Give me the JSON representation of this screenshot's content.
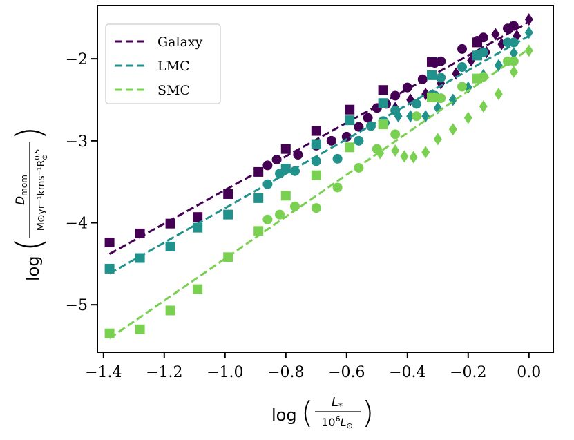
{
  "chart_data": {
    "type": "scatter",
    "xlim": [
      -1.42,
      0.08
    ],
    "ylim": [
      -5.58,
      -1.35
    ],
    "xticks": [
      -1.4,
      -1.2,
      -1.0,
      -0.8,
      -0.6,
      -0.4,
      -0.2,
      0.0
    ],
    "xtick_labels": [
      "−1.4",
      "−1.2",
      "−1.0",
      "−0.8",
      "−0.6",
      "−0.4",
      "−0.2",
      "0.0"
    ],
    "yticks": [
      -5,
      -4,
      -3,
      -2
    ],
    "ytick_labels": [
      "−5",
      "−4",
      "−3",
      "−2"
    ],
    "xlabel": {
      "prefix": "log",
      "num": "L",
      "num_sub": "*",
      "den": "10",
      "den_sup": "6",
      "den_var": "L",
      "den_sub": "⊙"
    },
    "ylabel": {
      "prefix": "log",
      "num": "D",
      "num_sub": "mom",
      "den": "M⊙yr⁻¹kms⁻¹R",
      "den_sup": "0.5",
      "den_sub": "⊙"
    },
    "legend": {
      "position": "upper-left",
      "entries": [
        "Galaxy",
        "LMC",
        "SMC"
      ]
    },
    "grid": false,
    "series": [
      {
        "name": "Galaxy",
        "color": "#440154",
        "fit": [
          [
            -1.38,
            -4.38
          ],
          [
            0.0,
            -1.55
          ]
        ],
        "squares": [
          [
            -1.38,
            -4.24
          ],
          [
            -1.28,
            -4.13
          ],
          [
            -1.18,
            -4.01
          ],
          [
            -1.09,
            -3.93
          ],
          [
            -0.99,
            -3.65
          ],
          [
            -0.89,
            -3.38
          ],
          [
            -0.8,
            -3.1
          ],
          [
            -0.7,
            -2.88
          ],
          [
            -0.59,
            -2.62
          ],
          [
            -0.48,
            -2.38
          ],
          [
            -0.32,
            -2.04
          ],
          [
            -0.17,
            -1.8
          ]
        ],
        "circles": [
          [
            -0.86,
            -3.3
          ],
          [
            -0.83,
            -3.23
          ],
          [
            -0.76,
            -3.17
          ],
          [
            -0.7,
            -3.06
          ],
          [
            -0.65,
            -3.0
          ],
          [
            -0.6,
            -2.95
          ],
          [
            -0.56,
            -2.83
          ],
          [
            -0.53,
            -2.72
          ],
          [
            -0.5,
            -2.6
          ],
          [
            -0.47,
            -2.55
          ],
          [
            -0.44,
            -2.45
          ],
          [
            -0.4,
            -2.35
          ],
          [
            -0.35,
            -2.25
          ],
          [
            -0.31,
            -2.05
          ],
          [
            -0.29,
            -2.03
          ],
          [
            -0.22,
            -1.88
          ],
          [
            -0.17,
            -1.78
          ],
          [
            -0.15,
            -1.74
          ],
          [
            -0.07,
            -1.63
          ],
          [
            -0.05,
            -1.6
          ]
        ],
        "diamonds": [
          [
            -0.44,
            -2.6
          ],
          [
            -0.39,
            -2.5
          ],
          [
            -0.34,
            -2.43
          ],
          [
            -0.29,
            -2.3
          ],
          [
            -0.24,
            -2.18
          ],
          [
            -0.19,
            -2.02
          ],
          [
            -0.14,
            -1.92
          ],
          [
            -0.09,
            -1.82
          ],
          [
            -0.04,
            -1.72
          ],
          [
            0.0,
            -1.52
          ],
          [
            -0.11,
            -1.7
          ],
          [
            -0.06,
            -1.62
          ]
        ]
      },
      {
        "name": "LMC",
        "color": "#21918c",
        "fit": [
          [
            -1.38,
            -4.62
          ],
          [
            0.0,
            -1.72
          ]
        ],
        "squares": [
          [
            -1.38,
            -4.56
          ],
          [
            -1.28,
            -4.43
          ],
          [
            -1.18,
            -4.29
          ],
          [
            -1.09,
            -4.06
          ],
          [
            -0.99,
            -3.9
          ],
          [
            -0.89,
            -3.7
          ],
          [
            -0.8,
            -3.34
          ],
          [
            -0.7,
            -3.04
          ],
          [
            -0.59,
            -2.75
          ],
          [
            -0.48,
            -2.54
          ],
          [
            -0.32,
            -2.2
          ],
          [
            -0.17,
            -1.96
          ]
        ],
        "circles": [
          [
            -0.86,
            -3.53
          ],
          [
            -0.82,
            -3.4
          ],
          [
            -0.77,
            -3.37
          ],
          [
            -0.7,
            -3.25
          ],
          [
            -0.63,
            -3.22
          ],
          [
            -0.56,
            -3.0
          ],
          [
            -0.52,
            -2.82
          ],
          [
            -0.48,
            -2.76
          ],
          [
            -0.44,
            -2.63
          ],
          [
            -0.37,
            -2.55
          ],
          [
            -0.31,
            -2.45
          ],
          [
            -0.29,
            -2.23
          ],
          [
            -0.22,
            -2.1
          ],
          [
            -0.17,
            -1.95
          ],
          [
            -0.15,
            -1.92
          ],
          [
            -0.07,
            -1.8
          ],
          [
            -0.05,
            -1.8
          ]
        ],
        "diamonds": [
          [
            -0.47,
            -2.78
          ],
          [
            -0.43,
            -2.7
          ],
          [
            -0.39,
            -2.7
          ],
          [
            -0.34,
            -2.7
          ],
          [
            -0.3,
            -2.6
          ],
          [
            -0.25,
            -2.5
          ],
          [
            -0.2,
            -2.35
          ],
          [
            -0.15,
            -2.2
          ],
          [
            -0.1,
            -2.08
          ],
          [
            -0.05,
            -1.93
          ],
          [
            0.0,
            -1.68
          ]
        ]
      },
      {
        "name": "SMC",
        "color": "#7ad151",
        "fit": [
          [
            -1.38,
            -5.41
          ],
          [
            0.0,
            -1.88
          ]
        ],
        "squares": [
          [
            -1.38,
            -5.35
          ],
          [
            -1.28,
            -5.3
          ],
          [
            -1.18,
            -5.07
          ],
          [
            -1.09,
            -4.81
          ],
          [
            -0.99,
            -4.42
          ],
          [
            -0.89,
            -4.1
          ],
          [
            -0.8,
            -3.67
          ],
          [
            -0.7,
            -3.42
          ],
          [
            -0.59,
            -3.08
          ],
          [
            -0.48,
            -2.8
          ],
          [
            -0.32,
            -2.47
          ],
          [
            -0.17,
            -2.24
          ]
        ],
        "circles": [
          [
            -0.86,
            -3.96
          ],
          [
            -0.82,
            -3.9
          ],
          [
            -0.77,
            -3.8
          ],
          [
            -0.7,
            -3.82
          ],
          [
            -0.63,
            -3.57
          ],
          [
            -0.56,
            -3.33
          ],
          [
            -0.5,
            -3.1
          ],
          [
            -0.44,
            -2.92
          ],
          [
            -0.37,
            -2.7
          ],
          [
            -0.31,
            -2.47
          ],
          [
            -0.29,
            -2.48
          ],
          [
            -0.22,
            -2.34
          ],
          [
            -0.17,
            -2.24
          ],
          [
            -0.15,
            -2.22
          ],
          [
            -0.07,
            -2.03
          ],
          [
            -0.05,
            -2.03
          ]
        ],
        "diamonds": [
          [
            -0.49,
            -3.15
          ],
          [
            -0.44,
            -3.12
          ],
          [
            -0.41,
            -3.19
          ],
          [
            -0.38,
            -3.2
          ],
          [
            -0.34,
            -3.14
          ],
          [
            -0.3,
            -2.98
          ],
          [
            -0.25,
            -2.86
          ],
          [
            -0.2,
            -2.72
          ],
          [
            -0.15,
            -2.58
          ],
          [
            -0.1,
            -2.43
          ],
          [
            -0.05,
            -2.16
          ],
          [
            0.0,
            -1.9
          ]
        ]
      }
    ]
  }
}
